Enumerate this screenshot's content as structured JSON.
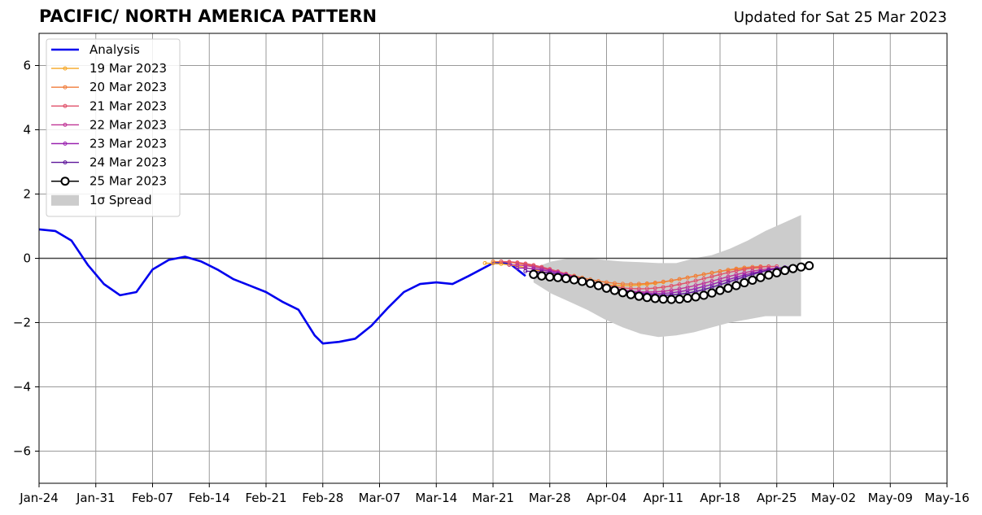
{
  "header": {
    "title": "PACIFIC/ NORTH AMERICA PATTERN",
    "updated": "Updated for Sat 25 Mar 2023"
  },
  "chart_data": {
    "type": "line",
    "title": "PACIFIC/ NORTH AMERICA PATTERN",
    "subtitle": "Updated for Sat 25 Mar 2023",
    "xlabel": "",
    "ylabel": "",
    "xlim": [
      "2023-01-24",
      "2023-05-16"
    ],
    "ylim": [
      -7,
      7
    ],
    "grid": true,
    "legend_position": "top-left",
    "x_ticks": [
      "Jan-24",
      "Jan-31",
      "Feb-07",
      "Feb-14",
      "Feb-21",
      "Feb-28",
      "Mar-07",
      "Mar-14",
      "Mar-21",
      "Mar-28",
      "Apr-04",
      "Apr-11",
      "Apr-18",
      "Apr-25",
      "May-02",
      "May-09",
      "May-16"
    ],
    "y_ticks": [
      -6,
      -4,
      -2,
      0,
      2,
      4,
      6
    ],
    "analysis": {
      "name": "Analysis",
      "color": "#0000ee",
      "points": [
        [
          "2023-01-24",
          0.9
        ],
        [
          "2023-01-26",
          0.85
        ],
        [
          "2023-01-28",
          0.55
        ],
        [
          "2023-01-30",
          -0.2
        ],
        [
          "2023-02-01",
          -0.8
        ],
        [
          "2023-02-03",
          -1.15
        ],
        [
          "2023-02-05",
          -1.05
        ],
        [
          "2023-02-07",
          -0.35
        ],
        [
          "2023-02-09",
          -0.05
        ],
        [
          "2023-02-11",
          0.05
        ],
        [
          "2023-02-13",
          -0.1
        ],
        [
          "2023-02-15",
          -0.35
        ],
        [
          "2023-02-17",
          -0.65
        ],
        [
          "2023-02-19",
          -0.85
        ],
        [
          "2023-02-21",
          -1.05
        ],
        [
          "2023-02-23",
          -1.35
        ],
        [
          "2023-02-25",
          -1.6
        ],
        [
          "2023-02-27",
          -2.4
        ],
        [
          "2023-02-28",
          -2.65
        ],
        [
          "2023-03-02",
          -2.6
        ],
        [
          "2023-03-04",
          -2.5
        ],
        [
          "2023-03-06",
          -2.1
        ],
        [
          "2023-03-08",
          -1.55
        ],
        [
          "2023-03-10",
          -1.05
        ],
        [
          "2023-03-12",
          -0.8
        ],
        [
          "2023-03-14",
          -0.75
        ],
        [
          "2023-03-16",
          -0.8
        ],
        [
          "2023-03-18",
          -0.55
        ],
        [
          "2023-03-21",
          -0.15
        ],
        [
          "2023-03-23",
          -0.15
        ],
        [
          "2023-03-25",
          -0.55
        ]
      ]
    },
    "forecasts": [
      {
        "name": "19 Mar 2023",
        "color": "#f5a623",
        "start": "2023-03-20",
        "days": 34,
        "y0": -0.15,
        "min": -0.85,
        "end": -0.3
      },
      {
        "name": "20 Mar 2023",
        "color": "#f07d3c",
        "start": "2023-03-21",
        "days": 34,
        "y0": -0.1,
        "min": -0.8,
        "end": -0.25
      },
      {
        "name": "21 Mar 2023",
        "color": "#e0506a",
        "start": "2023-03-22",
        "days": 34,
        "y0": -0.1,
        "min": -0.95,
        "end": -0.25
      },
      {
        "name": "22 Mar 2023",
        "color": "#c03596",
        "start": "2023-03-23",
        "days": 34,
        "y0": -0.2,
        "min": -1.05,
        "end": -0.3
      },
      {
        "name": "23 Mar 2023",
        "color": "#9a23b0",
        "start": "2023-03-24",
        "days": 34,
        "y0": -0.3,
        "min": -1.1,
        "end": -0.3
      },
      {
        "name": "24 Mar 2023",
        "color": "#5d1499",
        "start": "2023-03-25",
        "days": 34,
        "y0": -0.4,
        "min": -1.15,
        "end": -0.25
      }
    ],
    "current_forecast": {
      "name": "25 Mar 2023",
      "color": "#000000",
      "start": "2023-03-26",
      "days": 34,
      "values": [
        -0.5,
        -0.55,
        -0.58,
        -0.6,
        -0.63,
        -0.67,
        -0.72,
        -0.78,
        -0.85,
        -0.93,
        -1.0,
        -1.07,
        -1.13,
        -1.18,
        -1.22,
        -1.25,
        -1.27,
        -1.28,
        -1.27,
        -1.24,
        -1.2,
        -1.15,
        -1.08,
        -1.0,
        -0.93,
        -0.85,
        -0.76,
        -0.68,
        -0.6,
        -0.52,
        -0.45,
        -0.38,
        -0.32,
        -0.27,
        -0.23
      ]
    },
    "spread": {
      "name": "1σ Spread",
      "color": "#cccccc",
      "start": "2023-03-26",
      "upper": [
        -0.3,
        -0.1,
        0.0,
        0.0,
        -0.05,
        -0.1,
        -0.12,
        -0.15,
        -0.15,
        0.0,
        0.1,
        0.3,
        0.55,
        0.85,
        1.1,
        1.35
      ],
      "lower": [
        -0.75,
        -1.1,
        -1.35,
        -1.6,
        -1.9,
        -2.15,
        -2.35,
        -2.45,
        -2.4,
        -2.3,
        -2.15,
        -2.0,
        -1.9,
        -1.8,
        -1.8,
        -1.8
      ],
      "step_days": 2.2
    },
    "legend": [
      "Analysis",
      "19 Mar 2023",
      "20 Mar 2023",
      "21 Mar 2023",
      "22 Mar 2023",
      "23 Mar 2023",
      "24 Mar 2023",
      "25 Mar 2023",
      "1σ Spread"
    ]
  }
}
